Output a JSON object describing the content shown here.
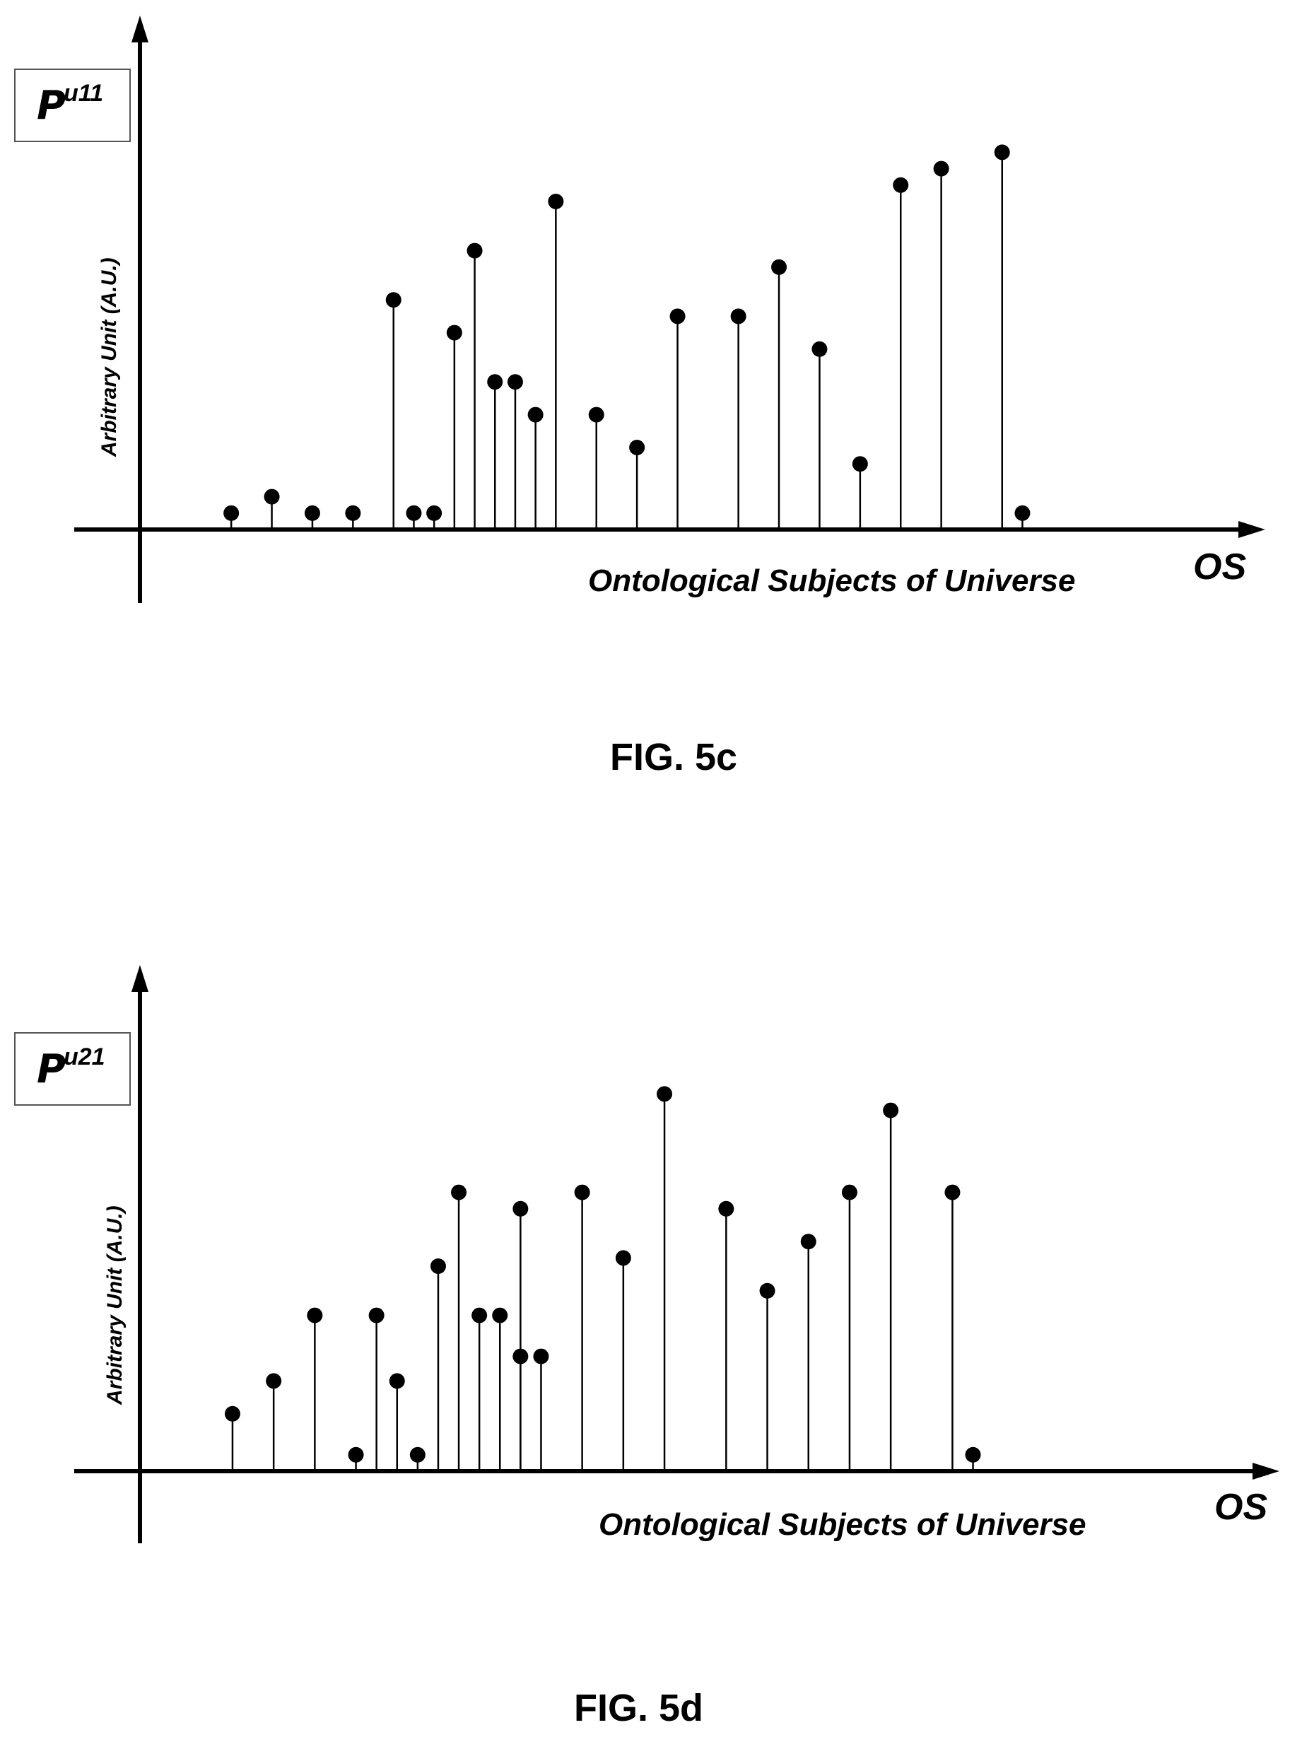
{
  "figures": [
    {
      "legend": {
        "symbol": "P",
        "superscript": "u11"
      },
      "ylabel": "Arbitrary Unit (A.U.)",
      "xlabel": "Ontological Subjects of Universe",
      "x_axis_end_label": "OS",
      "caption": "FIG. 5c"
    },
    {
      "legend": {
        "symbol": "P",
        "superscript": "u21"
      },
      "ylabel": "Arbitrary Unit (A.U.)",
      "xlabel": "Ontological Subjects of Universe",
      "x_axis_end_label": "OS",
      "caption": "FIG. 5d"
    }
  ],
  "chart_data": [
    {
      "type": "scatter",
      "style": "stem",
      "xlim": [
        0,
        55
      ],
      "ylim": [
        0,
        25
      ],
      "grid": false,
      "x": [
        4.5,
        6.5,
        8.5,
        10.5,
        12.5,
        13.5,
        14.5,
        15.5,
        16.5,
        17.5,
        18.5,
        19.5,
        20.5,
        22.5,
        24.5,
        26.5,
        29.5,
        31.5,
        33.5,
        35.5,
        37.5,
        39.5,
        42.5,
        43.5
      ],
      "y": [
        1,
        2,
        1,
        1,
        14,
        1,
        1,
        12,
        17,
        9,
        9,
        7,
        20,
        7,
        5,
        13,
        13,
        16,
        11,
        4,
        21,
        22,
        23,
        1
      ]
    },
    {
      "type": "scatter",
      "style": "stem",
      "xlim": [
        0,
        55
      ],
      "ylim": [
        0,
        25
      ],
      "grid": false,
      "x": [
        4.5,
        6.5,
        8.5,
        10.5,
        11.5,
        12.5,
        13.5,
        14.5,
        15.5,
        16.5,
        17.5,
        18.5,
        18.5,
        19.5,
        21.5,
        23.5,
        25.5,
        28.5,
        30.5,
        32.5,
        34.5,
        36.5,
        39.5,
        40.5
      ],
      "y": [
        3.5,
        5.5,
        9.5,
        1,
        9.5,
        5.5,
        1,
        12.5,
        17,
        9.5,
        9.5,
        7,
        16,
        7,
        17,
        13,
        23,
        16,
        11,
        14,
        17,
        22,
        17,
        1
      ]
    }
  ]
}
